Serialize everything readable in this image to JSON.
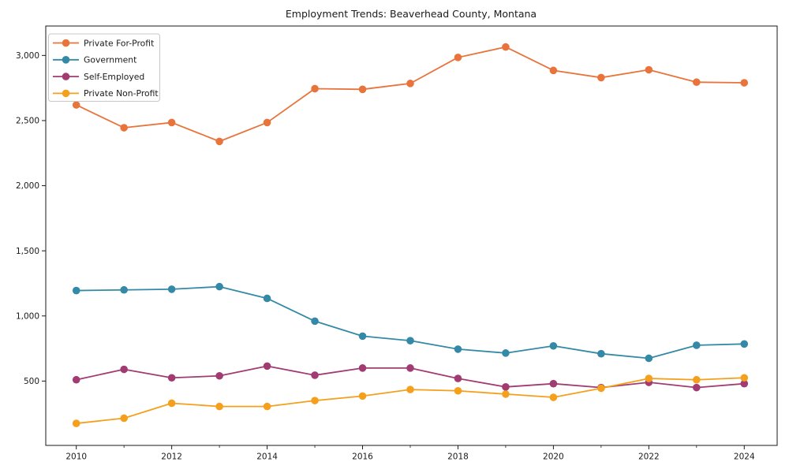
{
  "chart_data": {
    "type": "line",
    "title": "Employment Trends: Beaverhead County, Montana",
    "xlabel": "",
    "ylabel": "",
    "grid": false,
    "legend_position": "upper left",
    "x": [
      2010,
      2011,
      2012,
      2013,
      2014,
      2015,
      2016,
      2017,
      2018,
      2019,
      2020,
      2021,
      2022,
      2023,
      2024
    ],
    "series": [
      {
        "name": "Private For-Profit",
        "color": "#E8743C",
        "values": [
          2620,
          2445,
          2485,
          2340,
          2485,
          2745,
          2740,
          2785,
          2985,
          3065,
          2885,
          2830,
          2890,
          2795,
          2790
        ]
      },
      {
        "name": "Government",
        "color": "#3389A6",
        "values": [
          1195,
          1200,
          1205,
          1225,
          1135,
          960,
          845,
          810,
          745,
          715,
          770,
          710,
          675,
          775,
          785
        ]
      },
      {
        "name": "Self-Employed",
        "color": "#A23B72",
        "values": [
          510,
          590,
          525,
          540,
          615,
          545,
          600,
          600,
          520,
          455,
          480,
          450,
          490,
          450,
          480
        ]
      },
      {
        "name": "Private Non-Profit",
        "color": "#F4A01C",
        "values": [
          175,
          215,
          330,
          305,
          305,
          350,
          385,
          435,
          425,
          400,
          375,
          445,
          520,
          510,
          525
        ]
      }
    ],
    "xlim": [
      2009.36,
      2024.69
    ],
    "ylim": [
      6,
      3226
    ],
    "xticks_major": [
      2010,
      2012,
      2014,
      2016,
      2018,
      2020,
      2022,
      2024
    ],
    "xticks_minor": [
      2011,
      2013,
      2015,
      2017,
      2019,
      2021,
      2023
    ],
    "yticks": [
      500,
      1000,
      1500,
      2000,
      2500,
      3000
    ],
    "ytick_labels": [
      "500",
      "1,000",
      "1,500",
      "2,000",
      "2,500",
      "3,000"
    ],
    "axis_color": "#1a1a1a"
  }
}
